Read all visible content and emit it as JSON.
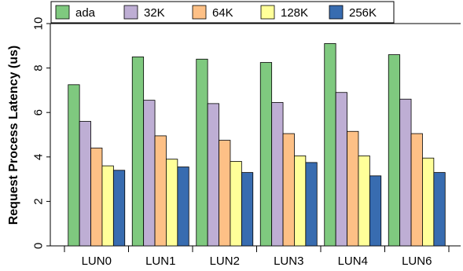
{
  "chart_data": {
    "type": "bar",
    "title": "",
    "xlabel": "",
    "ylabel": "Request Process Latency (us)",
    "ylim": [
      0,
      10
    ],
    "yticks": [
      0,
      2,
      4,
      6,
      8,
      10
    ],
    "grid": false,
    "legend_position": "top",
    "categories": [
      "LUN0",
      "LUN1",
      "LUN2",
      "LUN3",
      "LUN4",
      "LUN6"
    ],
    "series": [
      {
        "name": "ada",
        "color": "#7fc97f",
        "values": [
          7.25,
          8.5,
          8.4,
          8.25,
          9.1,
          8.6
        ]
      },
      {
        "name": "32K",
        "color": "#beaed4",
        "values": [
          5.6,
          6.55,
          6.4,
          6.45,
          6.9,
          6.6
        ]
      },
      {
        "name": "64K",
        "color": "#fdc086",
        "values": [
          4.4,
          4.95,
          4.75,
          5.05,
          5.15,
          5.05
        ]
      },
      {
        "name": "128K",
        "color": "#ffff99",
        "values": [
          3.6,
          3.9,
          3.8,
          4.05,
          4.05,
          3.95
        ]
      },
      {
        "name": "256K",
        "color": "#386cb0",
        "values": [
          3.4,
          3.55,
          3.3,
          3.75,
          3.15,
          3.3
        ]
      }
    ]
  }
}
